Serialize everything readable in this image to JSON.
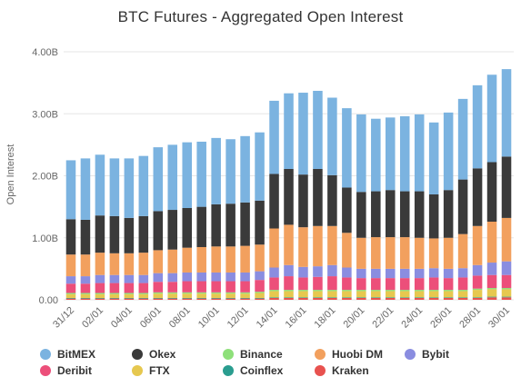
{
  "title": "BTC Futures - Aggregated Open Interest",
  "chart_data": {
    "type": "bar",
    "stacked": true,
    "title": "BTC Futures - Aggregated Open Interest",
    "xlabel": "",
    "ylabel": "Open Interest",
    "ylim": [
      0,
      4.0
    ],
    "y_ticks": [
      "0.00",
      "1.00B",
      "2.00B",
      "3.00B",
      "4.00B"
    ],
    "y_tick_values": [
      0,
      1,
      2,
      3,
      4
    ],
    "unit": "B",
    "grid": true,
    "legend_position": "bottom",
    "categories": [
      "31/12",
      "01/01",
      "02/01",
      "03/01",
      "04/01",
      "05/01",
      "06/01",
      "07/01",
      "08/01",
      "09/01",
      "10/01",
      "11/01",
      "12/01",
      "13/01",
      "14/01",
      "15/01",
      "16/01",
      "17/01",
      "18/01",
      "19/01",
      "20/01",
      "21/01",
      "22/01",
      "23/01",
      "24/01",
      "25/01",
      "26/01",
      "27/01",
      "28/01",
      "29/01",
      "30/01"
    ],
    "x_tick_labels": [
      "31/12",
      "",
      "02/01",
      "",
      "04/01",
      "",
      "06/01",
      "",
      "08/01",
      "",
      "10/01",
      "",
      "12/01",
      "",
      "14/01",
      "",
      "16/01",
      "",
      "18/01",
      "",
      "20/01",
      "",
      "22/01",
      "",
      "24/01",
      "",
      "26/01",
      "",
      "28/01",
      "",
      "30/01"
    ],
    "series": [
      {
        "name": "Kraken",
        "color": "#e8524f",
        "values": [
          0.02,
          0.02,
          0.02,
          0.02,
          0.02,
          0.02,
          0.02,
          0.02,
          0.02,
          0.02,
          0.02,
          0.02,
          0.02,
          0.02,
          0.03,
          0.03,
          0.03,
          0.03,
          0.03,
          0.03,
          0.03,
          0.03,
          0.03,
          0.03,
          0.03,
          0.03,
          0.03,
          0.03,
          0.03,
          0.04,
          0.04
        ]
      },
      {
        "name": "Coinflex",
        "color": "#2a9d8f",
        "values": [
          0.01,
          0.01,
          0.01,
          0.01,
          0.01,
          0.01,
          0.01,
          0.01,
          0.01,
          0.01,
          0.01,
          0.01,
          0.01,
          0.01,
          0.01,
          0.01,
          0.01,
          0.01,
          0.01,
          0.01,
          0.01,
          0.01,
          0.01,
          0.01,
          0.01,
          0.01,
          0.01,
          0.01,
          0.01,
          0.01,
          0.01
        ]
      },
      {
        "name": "FTX",
        "color": "#e6c84f",
        "values": [
          0.06,
          0.06,
          0.06,
          0.06,
          0.06,
          0.06,
          0.07,
          0.07,
          0.07,
          0.07,
          0.07,
          0.07,
          0.07,
          0.08,
          0.1,
          0.1,
          0.1,
          0.1,
          0.1,
          0.1,
          0.1,
          0.1,
          0.1,
          0.1,
          0.1,
          0.1,
          0.1,
          0.1,
          0.12,
          0.12,
          0.12
        ]
      },
      {
        "name": "Binance",
        "color": "#8ee07a",
        "values": [
          0.02,
          0.02,
          0.02,
          0.02,
          0.02,
          0.02,
          0.02,
          0.02,
          0.02,
          0.02,
          0.02,
          0.02,
          0.02,
          0.02,
          0.02,
          0.02,
          0.02,
          0.02,
          0.02,
          0.02,
          0.02,
          0.02,
          0.02,
          0.02,
          0.02,
          0.02,
          0.02,
          0.02,
          0.02,
          0.02,
          0.02
        ]
      },
      {
        "name": "Deribit",
        "color": "#ec4f7a",
        "values": [
          0.15,
          0.15,
          0.16,
          0.16,
          0.16,
          0.16,
          0.17,
          0.17,
          0.18,
          0.18,
          0.18,
          0.18,
          0.18,
          0.19,
          0.2,
          0.22,
          0.2,
          0.21,
          0.22,
          0.2,
          0.19,
          0.19,
          0.19,
          0.19,
          0.19,
          0.2,
          0.19,
          0.2,
          0.21,
          0.21,
          0.21
        ]
      },
      {
        "name": "Bybit",
        "color": "#8a8de0",
        "values": [
          0.12,
          0.12,
          0.13,
          0.13,
          0.13,
          0.13,
          0.14,
          0.14,
          0.14,
          0.14,
          0.14,
          0.14,
          0.14,
          0.14,
          0.16,
          0.18,
          0.17,
          0.17,
          0.18,
          0.16,
          0.15,
          0.15,
          0.15,
          0.15,
          0.15,
          0.15,
          0.15,
          0.15,
          0.17,
          0.2,
          0.22
        ]
      },
      {
        "name": "Huobi DM",
        "color": "#f2a05e",
        "values": [
          0.35,
          0.35,
          0.36,
          0.35,
          0.35,
          0.36,
          0.37,
          0.38,
          0.4,
          0.41,
          0.42,
          0.42,
          0.43,
          0.43,
          0.63,
          0.65,
          0.64,
          0.65,
          0.63,
          0.56,
          0.5,
          0.51,
          0.51,
          0.51,
          0.5,
          0.48,
          0.5,
          0.55,
          0.63,
          0.66,
          0.7
        ]
      },
      {
        "name": "Okex",
        "color": "#3a3a3a",
        "values": [
          0.57,
          0.56,
          0.6,
          0.6,
          0.57,
          0.59,
          0.63,
          0.64,
          0.64,
          0.65,
          0.68,
          0.69,
          0.7,
          0.71,
          0.88,
          0.9,
          0.85,
          0.92,
          0.82,
          0.73,
          0.74,
          0.74,
          0.76,
          0.74,
          0.75,
          0.71,
          0.77,
          0.88,
          0.93,
          0.96,
          0.99
        ]
      },
      {
        "name": "BitMEX",
        "color": "#7bb3e0",
        "values": [
          0.95,
          0.99,
          0.98,
          0.93,
          0.96,
          0.97,
          1.03,
          1.05,
          1.06,
          1.05,
          1.07,
          1.04,
          1.07,
          1.1,
          1.18,
          1.22,
          1.32,
          1.26,
          1.25,
          1.28,
          1.25,
          1.17,
          1.17,
          1.21,
          1.24,
          1.16,
          1.25,
          1.3,
          1.34,
          1.41,
          1.41
        ]
      }
    ],
    "legend": [
      {
        "name": "BitMEX",
        "color": "#7bb3e0"
      },
      {
        "name": "Okex",
        "color": "#3a3a3a"
      },
      {
        "name": "Binance",
        "color": "#8ee07a"
      },
      {
        "name": "Huobi DM",
        "color": "#f2a05e"
      },
      {
        "name": "Bybit",
        "color": "#8a8de0"
      },
      {
        "name": "Deribit",
        "color": "#ec4f7a"
      },
      {
        "name": "FTX",
        "color": "#e6c84f"
      },
      {
        "name": "Coinflex",
        "color": "#2a9d8f"
      },
      {
        "name": "Kraken",
        "color": "#e8524f"
      }
    ]
  }
}
